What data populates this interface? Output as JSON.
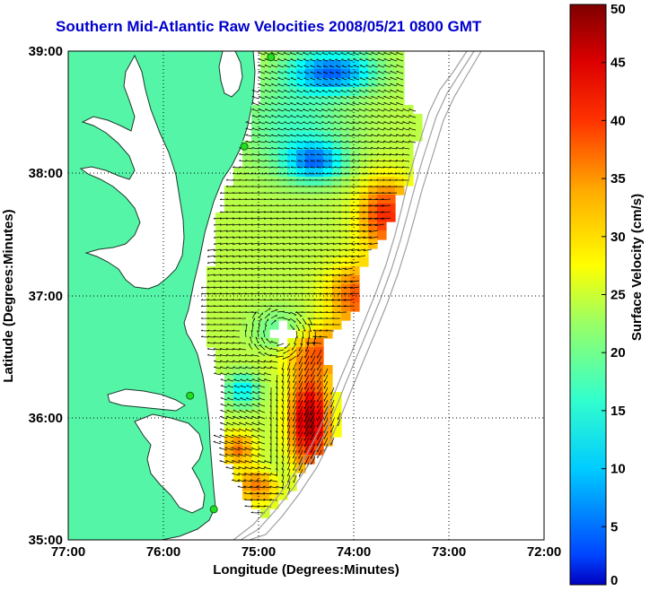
{
  "title": "Southern Mid-Atlantic Raw Velocities 2008/05/21 0800 GMT",
  "axes": {
    "xlabel": "Longitude (Degrees:Minutes)",
    "ylabel": "Latitude (Degrees:Minutes)",
    "xticks": [
      "77:00",
      "76:00",
      "75:00",
      "74:00",
      "73:00",
      "72:00"
    ],
    "yticks": [
      "39:00",
      "38:00",
      "37:00",
      "36:00",
      "35:00"
    ],
    "xlim": [
      -77,
      -72
    ],
    "ylim": [
      35,
      39
    ],
    "grid": "dotted"
  },
  "colorbar": {
    "label": "Surface Velocity (cm/s)",
    "ticks": [
      "0",
      "5",
      "10",
      "15",
      "20",
      "25",
      "30",
      "35",
      "40",
      "45",
      "50"
    ],
    "range": [
      0,
      50
    ],
    "colormap": "jet"
  },
  "colors": {
    "title": "#0000cc",
    "land": "#55f5a8",
    "coastline": "#1a3a2a",
    "isobath": "#a0a0a0",
    "station": "#22dd22"
  },
  "stations": [
    {
      "lon": -74.87,
      "lat": 38.95
    },
    {
      "lon": -75.15,
      "lat": 38.22
    },
    {
      "lon": -75.72,
      "lat": 36.18
    },
    {
      "lon": -75.47,
      "lat": 35.25
    }
  ]
}
